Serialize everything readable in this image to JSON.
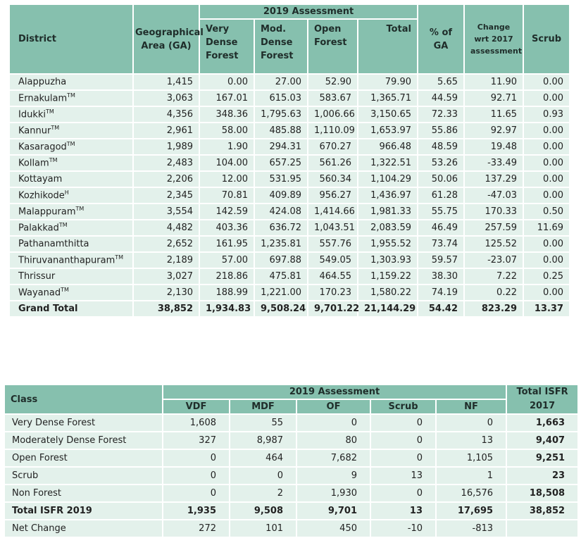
{
  "table1": {
    "header": {
      "district": "District",
      "ga": "Geographical Area (GA)",
      "group": "2019 Assessment",
      "vdf": "Very Dense Forest",
      "mdf": "Mod. Dense Forest",
      "of": "Open Forest",
      "total": "Total",
      "pct": "% of GA",
      "change": "Change wrt 2017 assessment",
      "scrub": "Scrub"
    },
    "rows": [
      {
        "district": "Alappuzha",
        "cells": [
          "1,415",
          "0.00",
          "27.00",
          "52.90",
          "79.90",
          "5.65",
          "11.90",
          "0.00"
        ]
      },
      {
        "district": "Ernakulam",
        "sup": "TM",
        "cells": [
          "3,063",
          "167.01",
          "615.03",
          "583.67",
          "1,365.71",
          "44.59",
          "92.71",
          "0.00"
        ]
      },
      {
        "district": "Idukki",
        "sup": "TM",
        "cells": [
          "4,356",
          "348.36",
          "1,795.63",
          "1,006.66",
          "3,150.65",
          "72.33",
          "11.65",
          "0.93"
        ]
      },
      {
        "district": "Kannur",
        "sup": "TM",
        "cells": [
          "2,961",
          "58.00",
          "485.88",
          "1,110.09",
          "1,653.97",
          "55.86",
          "92.97",
          "0.00"
        ]
      },
      {
        "district": "Kasaragod",
        "sup": "TM",
        "cells": [
          "1,989",
          "1.90",
          "294.31",
          "670.27",
          "966.48",
          "48.59",
          "19.48",
          "0.00"
        ]
      },
      {
        "district": "Kollam",
        "sup": "TM",
        "cells": [
          "2,483",
          "104.00",
          "657.25",
          "561.26",
          "1,322.51",
          "53.26",
          "-33.49",
          "0.00"
        ]
      },
      {
        "district": "Kottayam",
        "cells": [
          "2,206",
          "12.00",
          "531.95",
          "560.34",
          "1,104.29",
          "50.06",
          "137.29",
          "0.00"
        ]
      },
      {
        "district": "Kozhikode",
        "sup": "H",
        "cells": [
          "2,345",
          "70.81",
          "409.89",
          "956.27",
          "1,436.97",
          "61.28",
          "-47.03",
          "0.00"
        ]
      },
      {
        "district": "Malappuram",
        "sup": "TM",
        "cells": [
          "3,554",
          "142.59",
          "424.08",
          "1,414.66",
          "1,981.33",
          "55.75",
          "170.33",
          "0.50"
        ]
      },
      {
        "district": "Palakkad",
        "sup": "TM",
        "cells": [
          "4,482",
          "403.36",
          "636.72",
          "1,043.51",
          "2,083.59",
          "46.49",
          "257.59",
          "11.69"
        ]
      },
      {
        "district": "Pathanamthitta",
        "cells": [
          "2,652",
          "161.95",
          "1,235.81",
          "557.76",
          "1,955.52",
          "73.74",
          "125.52",
          "0.00"
        ]
      },
      {
        "district": "Thiruvananthapuram",
        "sup": "TM",
        "cells": [
          "2,189",
          "57.00",
          "697.88",
          "549.05",
          "1,303.93",
          "59.57",
          "-23.07",
          "0.00"
        ]
      },
      {
        "district": "Thrissur",
        "cells": [
          "3,027",
          "218.86",
          "475.81",
          "464.55",
          "1,159.22",
          "38.30",
          "7.22",
          "0.25"
        ]
      },
      {
        "district": "Wayanad",
        "sup": "TM",
        "cells": [
          "2,130",
          "188.99",
          "1,221.00",
          "170.23",
          "1,580.22",
          "74.19",
          "0.22",
          "0.00"
        ]
      }
    ],
    "total": {
      "district": "Grand Total",
      "cells": [
        "38,852",
        "1,934.83",
        "9,508.24",
        "9,701.22",
        "21,144.29",
        "54.42",
        "823.29",
        "13.37"
      ]
    }
  },
  "table2": {
    "header": {
      "class": "Class",
      "group": "2019 Assessment",
      "cols": [
        "VDF",
        "MDF",
        "OF",
        "Scrub",
        "NF"
      ],
      "total": "Total ISFR 2017"
    },
    "rows": [
      {
        "class": "Very Dense Forest",
        "cells": [
          "1,608",
          "55",
          "0",
          "0",
          "0"
        ],
        "total": "1,663"
      },
      {
        "class": "Moderately Dense Forest",
        "cells": [
          "327",
          "8,987",
          "80",
          "0",
          "13"
        ],
        "total": "9,407"
      },
      {
        "class": "Open Forest",
        "cells": [
          "0",
          "464",
          "7,682",
          "0",
          "1,105"
        ],
        "total": "9,251"
      },
      {
        "class": "Scrub",
        "cells": [
          "0",
          "0",
          "9",
          "13",
          "1"
        ],
        "total": "23"
      },
      {
        "class": "Non Forest",
        "cells": [
          "0",
          "2",
          "1,930",
          "0",
          "16,576"
        ],
        "total": "18,508"
      },
      {
        "class": "Total ISFR 2019",
        "cells": [
          "1,935",
          "9,508",
          "9,701",
          "13",
          "17,695"
        ],
        "total": "38,852",
        "bold": true
      },
      {
        "class": "Net Change",
        "cells": [
          "272",
          "101",
          "450",
          "-10",
          "-813"
        ]
      }
    ]
  }
}
